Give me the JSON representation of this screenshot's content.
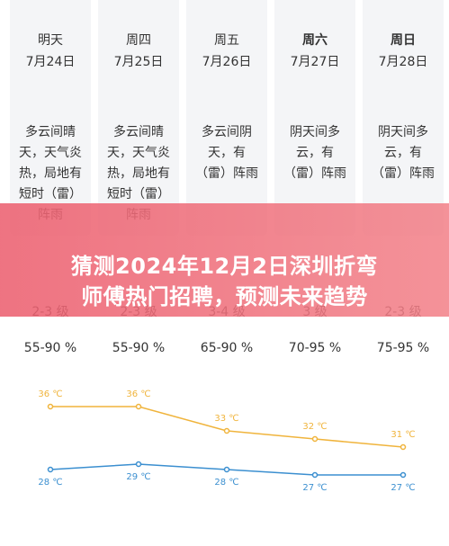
{
  "days": [
    {
      "day": "明天",
      "date": "7月24日",
      "desc": [
        "多云间晴",
        "天，天气炎",
        "热，局地有",
        "短时（雷）",
        "阵雨"
      ],
      "wind": "2-3 级",
      "humidity": "55-90 %",
      "high": 36,
      "high_label": "36 ℃",
      "low": 28,
      "low_label": "28 ℃"
    },
    {
      "day": "周四",
      "date": "7月25日",
      "desc": [
        "多云间晴",
        "天，天气炎",
        "热，局地有",
        "短时（雷）",
        "阵雨"
      ],
      "wind": "2-3 级",
      "humidity": "55-90 %",
      "high": 36,
      "high_label": "36 ℃",
      "low": 29,
      "low_label": "29 ℃"
    },
    {
      "day": "周五",
      "date": "7月26日",
      "desc": [
        "多云间阴",
        "天，有",
        "（雷）阵雨"
      ],
      "wind": "3-4 级",
      "humidity": "65-90 %",
      "high": 33,
      "high_label": "33 ℃",
      "low": 28,
      "low_label": "28 ℃"
    },
    {
      "day": "周六",
      "date": "7月27日",
      "desc": [
        "阴天间多",
        "云，有",
        "（雷）阵雨"
      ],
      "wind": "3 级",
      "humidity": "70-95 %",
      "high": 32,
      "high_label": "32 ℃",
      "low": 27,
      "low_label": "27 ℃"
    },
    {
      "day": "周日",
      "date": "7月28日",
      "desc": [
        "阴天间多",
        "云，有",
        "（雷）阵雨"
      ],
      "wind": "2-3 级",
      "humidity": "75-95 %",
      "high": 31,
      "high_label": "31 ℃",
      "low": 27,
      "low_label": "27 ℃"
    }
  ],
  "banner": {
    "lines": [
      "猜测2024年12月2日深圳折弯",
      "师傅热门招聘，预测未来趋势"
    ]
  }
}
